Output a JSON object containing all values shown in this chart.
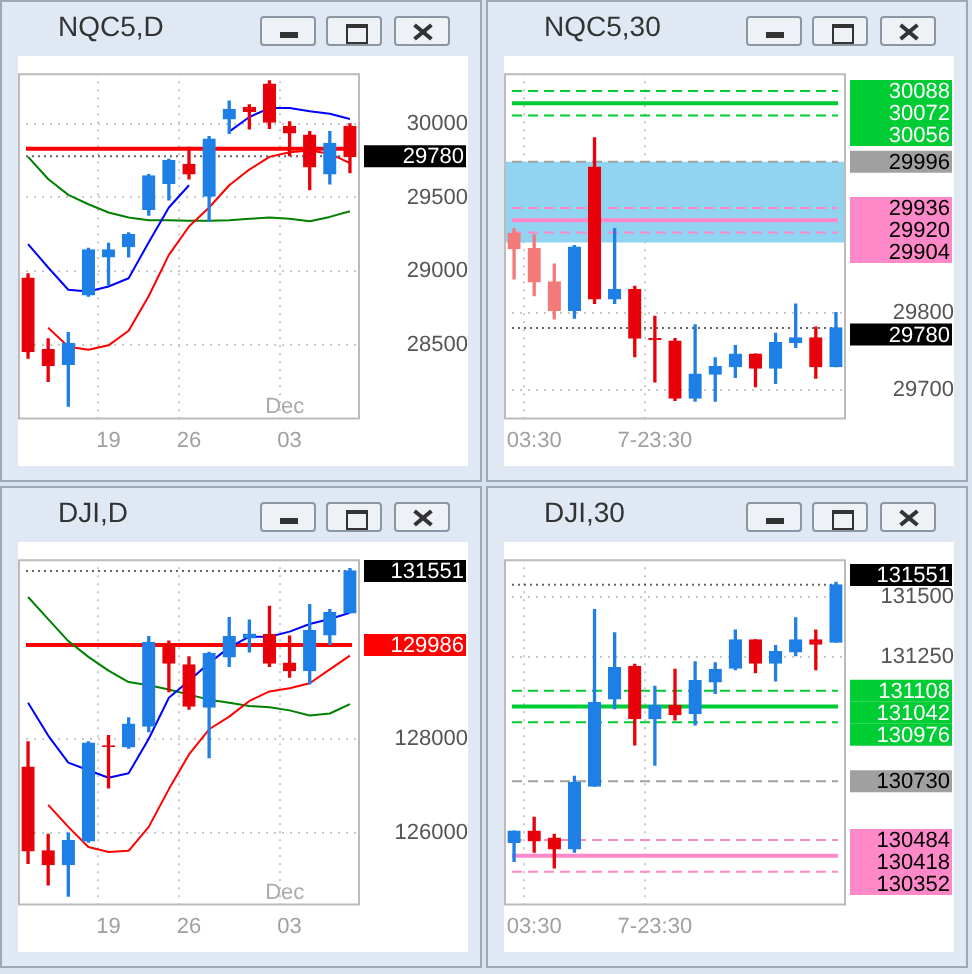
{
  "chart_data": [
    {
      "type": "candlestick",
      "title": "NQC5,D",
      "categories": [
        null,
        null,
        null,
        null,
        "19",
        null,
        null,
        null,
        "26",
        null,
        null,
        null,
        null,
        "03",
        null,
        null,
        null
      ],
      "ohlc": [
        [
          28951,
          28981,
          28409,
          28452
        ],
        [
          28465,
          28538,
          28250,
          28357
        ],
        [
          28366,
          28581,
          28082,
          28508
        ],
        [
          28839,
          29153,
          28830,
          29144
        ],
        [
          29097,
          29187,
          28908,
          29144
        ],
        [
          29166,
          29260,
          29097,
          29248
        ],
        [
          29420,
          29656,
          29381,
          29647
        ],
        [
          29596,
          29759,
          29484,
          29751
        ],
        [
          29725,
          29841,
          29626,
          29660
        ],
        [
          29510,
          29914,
          29338,
          29897
        ],
        [
          30034,
          30155,
          29936,
          30099
        ],
        [
          30112,
          30129,
          29966,
          30086
        ],
        [
          30271,
          30292,
          29970,
          30013
        ],
        [
          29983,
          30013,
          29785,
          29940
        ],
        [
          29923,
          29948,
          29553,
          29708
        ],
        [
          29660,
          29948,
          29592,
          29867
        ],
        [
          29983,
          30000,
          29669,
          29780
        ]
      ],
      "colors": [
        "#e8000b",
        "#e8000b",
        "#1e7fe6",
        "#1e7fe6",
        "#1e7fe6",
        "#1e7fe6",
        "#1e7fe6",
        "#1e7fe6",
        "#e8000b",
        "#1e7fe6",
        "#1e7fe6",
        "#e8000b",
        "#e8000b",
        "#e8000b",
        "#e8000b",
        "#1e7fe6",
        "#e8000b"
      ],
      "series": [
        {
          "type": "line",
          "color": "#0000ff",
          "values": [
            29183,
            29024,
            28873,
            28861,
            28895,
            28951,
            29196,
            29432,
            29583,
            null,
            29948,
            30047,
            30108,
            30108,
            30086,
            30069,
            30034
          ]
        },
        {
          "type": "line",
          "color": "#ff0000",
          "values": [
            null,
            28615,
            28486,
            28465,
            28495,
            28594,
            28830,
            29110,
            29303,
            29432,
            29583,
            29690,
            29776,
            29807,
            29819,
            29798,
            29733
          ]
        },
        {
          "type": "line",
          "color": "#008000",
          "values": [
            29776,
            29626,
            29518,
            29454,
            29398,
            29364,
            29346,
            29346,
            29342,
            29342,
            29346,
            29355,
            29364,
            29355,
            29338,
            29368,
            29407
          ]
        }
      ],
      "ylim": [
        27990,
        30345
      ],
      "yticks": [
        28500,
        29000,
        29500,
        30000
      ],
      "grid": true,
      "legend": "right",
      "ref_lines": [
        {
          "axis": "y",
          "value": 29832,
          "color": "#ff0000",
          "line_style": "solid"
        },
        {
          "axis": "y",
          "value": 29780,
          "label": "29780",
          "color": "#000000",
          "line_style": "dotted"
        }
      ],
      "annotations": [
        "Dec"
      ]
    },
    {
      "type": "candlestick",
      "title": "NQC5,30",
      "categories": [
        null,
        "03:30",
        null,
        null,
        null,
        null,
        null,
        "7-23:30",
        null,
        null,
        null,
        null,
        null,
        null,
        null,
        null,
        null
      ],
      "ohlc": [
        [
          29903,
          29909,
          29844,
          29883
        ],
        [
          29883,
          29901,
          29822,
          29840
        ],
        [
          29840,
          29863,
          29792,
          29803
        ],
        [
          29803,
          29887,
          29793,
          29885
        ],
        [
          29989,
          30027,
          29812,
          29818
        ],
        [
          29818,
          29909,
          29812,
          29830
        ],
        [
          29830,
          29834,
          29743,
          29767
        ],
        [
          29766,
          29795,
          29710,
          29765
        ],
        [
          29763,
          29766,
          29686,
          29689
        ],
        [
          29689,
          29784,
          29685,
          29720
        ],
        [
          29720,
          29741,
          29685,
          29730
        ],
        [
          29730,
          29757,
          29716,
          29746
        ],
        [
          29746,
          29746,
          29704,
          29728
        ],
        [
          29728,
          29773,
          29708,
          29761
        ],
        [
          29761,
          29811,
          29755,
          29767
        ],
        [
          29767,
          29781,
          29715,
          29730
        ],
        [
          29730,
          29800,
          29730,
          29780
        ]
      ],
      "colors": [
        "#f47a7a",
        "#f47a7a",
        "#f47a7a",
        "#1e7fe6",
        "#e8000b",
        "#1e7fe6",
        "#e8000b",
        "#e8000b",
        "#e8000b",
        "#1e7fe6",
        "#1e7fe6",
        "#1e7fe6",
        "#e8000b",
        "#1e7fe6",
        "#1e7fe6",
        "#e8000b",
        "#1e7fe6"
      ],
      "ylim": [
        29661,
        30111
      ],
      "yticks": [
        29700,
        29800
      ],
      "grid": true,
      "legend": "right",
      "bands": [
        {
          "axis": "y",
          "from": 29891,
          "to": 29996,
          "color": "#90d4f2"
        }
      ],
      "ref_lines": [
        {
          "axis": "y",
          "value": 30088,
          "label": "30088",
          "color": "#00cc33",
          "line_style": "dashed"
        },
        {
          "axis": "y",
          "value": 30072,
          "label": "30072",
          "color": "#00cc33",
          "line_style": "solid"
        },
        {
          "axis": "y",
          "value": 30056,
          "label": "30056",
          "color": "#00cc33",
          "line_style": "dashed"
        },
        {
          "axis": "y",
          "value": 29996,
          "label": "29996",
          "color": "#a0a0a0",
          "line_style": "dashed"
        },
        {
          "axis": "y",
          "value": 29936,
          "label": "29936",
          "color": "#ff88c8",
          "line_style": "dashed"
        },
        {
          "axis": "y",
          "value": 29920,
          "label": "29920",
          "color": "#ff88c8",
          "line_style": "solid"
        },
        {
          "axis": "y",
          "value": 29904,
          "label": "29904",
          "color": "#ff88c8",
          "line_style": "dashed"
        },
        {
          "axis": "y",
          "value": 29780,
          "label": "29780",
          "color": "#000000",
          "line_style": "dotted"
        }
      ]
    },
    {
      "type": "candlestick",
      "title": "DJI,D",
      "categories": [
        null,
        null,
        null,
        null,
        "19",
        null,
        null,
        null,
        "26",
        null,
        null,
        null,
        null,
        "03",
        null,
        null,
        null
      ],
      "ohlc": [
        [
          127400,
          127933,
          125360,
          125627
        ],
        [
          125627,
          125973,
          124907,
          125333
        ],
        [
          125333,
          126000,
          124667,
          125840
        ],
        [
          125840,
          127933,
          125813,
          127907
        ],
        [
          127847,
          128067,
          126960,
          127840
        ],
        [
          127827,
          128440,
          127800,
          128307
        ],
        [
          128267,
          130160,
          128150,
          130040
        ],
        [
          130000,
          130067,
          129000,
          129600
        ],
        [
          129560,
          129733,
          128627,
          128693
        ],
        [
          128667,
          129827,
          127600,
          129800
        ],
        [
          129733,
          130560,
          129533,
          130160
        ],
        [
          130133,
          130507,
          129840,
          130213
        ],
        [
          130200,
          130800,
          129533,
          129600
        ],
        [
          129600,
          130173,
          129307,
          129440
        ],
        [
          129440,
          130840,
          129160,
          130293
        ],
        [
          130200,
          130733,
          130000,
          130667
        ],
        [
          130667,
          131600,
          130667,
          131551
        ]
      ],
      "colors": [
        "#e8000b",
        "#e8000b",
        "#1e7fe6",
        "#1e7fe6",
        "#e8000b",
        "#1e7fe6",
        "#1e7fe6",
        "#e8000b",
        "#e8000b",
        "#1e7fe6",
        "#1e7fe6",
        "#1e7fe6",
        "#e8000b",
        "#e8000b",
        "#1e7fe6",
        "#1e7fe6",
        "#1e7fe6"
      ],
      "series": [
        {
          "type": "line",
          "color": "#0000ff",
          "values": [
            128760,
            128067,
            127493,
            127333,
            127173,
            127267,
            128000,
            128867,
            129227,
            129600,
            129933,
            130160,
            130160,
            130267,
            130427,
            130533,
            130667
          ]
        },
        {
          "type": "line",
          "color": "#ff0000",
          "values": [
            null,
            126600,
            126133,
            125707,
            125600,
            125627,
            126133,
            126933,
            127667,
            128200,
            128467,
            128800,
            129000,
            129067,
            129173,
            129467,
            129760
          ]
        },
        {
          "type": "line",
          "color": "#008000",
          "values": [
            131000,
            130533,
            130067,
            129733,
            129440,
            129200,
            129133,
            129040,
            128933,
            128827,
            128760,
            128693,
            128667,
            128600,
            128493,
            128533,
            128733
          ]
        }
      ],
      "ylim": [
        124467,
        131800
      ],
      "yticks": [
        126000,
        128000
      ],
      "grid": true,
      "legend": "right",
      "ref_lines": [
        {
          "axis": "y",
          "value": 129986,
          "label": "129986",
          "color": "#ff0000",
          "line_style": "solid"
        },
        {
          "axis": "y",
          "value": 131551,
          "label": "131551",
          "color": "#000000",
          "line_style": "dotted"
        }
      ],
      "annotations": [
        "Dec"
      ]
    },
    {
      "type": "candlestick",
      "title": "DJI,30",
      "categories": [
        null,
        "03:30",
        null,
        null,
        null,
        null,
        null,
        "7-23:30",
        null,
        null,
        null,
        null,
        null,
        null,
        null,
        null,
        null
      ],
      "ohlc": [
        [
          130474,
          130521,
          130395,
          130521
        ],
        [
          130521,
          130579,
          130434,
          130481
        ],
        [
          130492,
          130508,
          130368,
          130447
        ],
        [
          130447,
          130750,
          130434,
          130724
        ],
        [
          130710,
          131447,
          130710,
          131058
        ],
        [
          131074,
          131350,
          131034,
          131205
        ],
        [
          131210,
          131218,
          130882,
          130992
        ],
        [
          130992,
          131126,
          130797,
          131047
        ],
        [
          131047,
          131197,
          130987,
          131008
        ],
        [
          131013,
          131229,
          130966,
          131150
        ],
        [
          131145,
          131224,
          131097,
          131197
        ],
        [
          131203,
          131361,
          131197,
          131321
        ],
        [
          131321,
          131321,
          131184,
          131224
        ],
        [
          131224,
          131297,
          131150,
          131271
        ],
        [
          131271,
          131413,
          131255,
          131321
        ],
        [
          131321,
          131361,
          131197,
          131303
        ],
        [
          131311,
          131561,
          131311,
          131551
        ]
      ],
      "colors": [
        "#1e7fe6",
        "#e8000b",
        "#e8000b",
        "#1e7fe6",
        "#1e7fe6",
        "#1e7fe6",
        "#e8000b",
        "#1e7fe6",
        "#e8000b",
        "#1e7fe6",
        "#1e7fe6",
        "#1e7fe6",
        "#e8000b",
        "#1e7fe6",
        "#1e7fe6",
        "#e8000b",
        "#1e7fe6"
      ],
      "ylim": [
        130210,
        131658
      ],
      "yticks": [
        131250,
        131500
      ],
      "grid": true,
      "legend": "right",
      "ref_lines": [
        {
          "axis": "y",
          "value": 131108,
          "label": "131108",
          "color": "#00cc33",
          "line_style": "dashed"
        },
        {
          "axis": "y",
          "value": 131042,
          "label": "131042",
          "color": "#00cc33",
          "line_style": "solid"
        },
        {
          "axis": "y",
          "value": 130976,
          "label": "130976",
          "color": "#00cc33",
          "line_style": "dashed"
        },
        {
          "axis": "y",
          "value": 130730,
          "label": "130730",
          "color": "#a0a0a0",
          "line_style": "dashed"
        },
        {
          "axis": "y",
          "value": 130484,
          "label": "130484",
          "color": "#ff88c8",
          "line_style": "dashed"
        },
        {
          "axis": "y",
          "value": 130418,
          "label": "130418",
          "color": "#ff88c8",
          "line_style": "solid"
        },
        {
          "axis": "y",
          "value": 130352,
          "label": "130352",
          "color": "#ff88c8",
          "line_style": "dashed"
        },
        {
          "axis": "y",
          "value": 131551,
          "label": "131551",
          "color": "#000000",
          "line_style": "dotted"
        }
      ]
    }
  ]
}
